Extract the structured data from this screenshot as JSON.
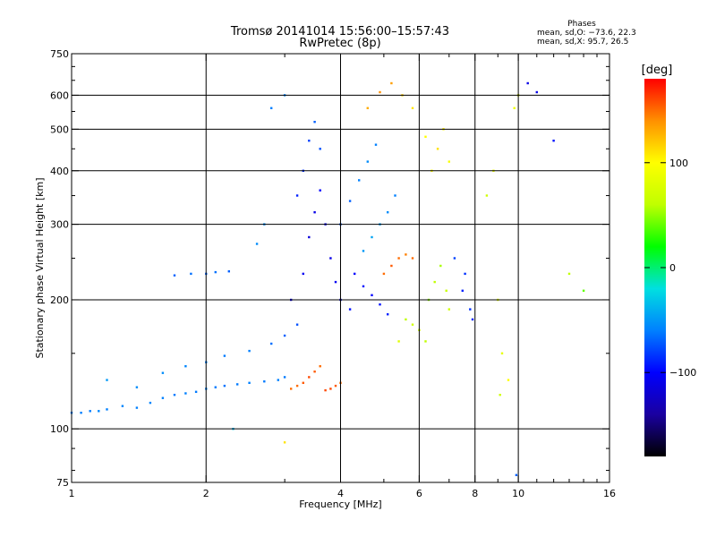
{
  "header": {
    "title_line1": "Tromsø 20141014 15:56:00–15:57:43",
    "title_line2": "RwPretec (8p)",
    "phases_title": "Phases",
    "phases_o": "mean, sd,O: −73.6, 22.3",
    "phases_x": "mean, sd,X:  95.7, 26.5"
  },
  "colors": {
    "gridline": "#000000",
    "colorbar_stops": [
      "#000000",
      "#1a00a0",
      "#0000ff",
      "#0080ff",
      "#00e0e0",
      "#00ff00",
      "#c0ff00",
      "#ffff00",
      "#ff9000",
      "#ff0000"
    ]
  },
  "chart_data": {
    "type": "scatter",
    "title": "Tromsø 20141014 15:56:00–15:57:43",
    "subtitle": "RwPretec (8p)",
    "xlabel": "Frequency [MHz]",
    "ylabel": "Stationary phase Virtual Height [km]",
    "x_scale": "log",
    "y_scale": "log",
    "xlim": [
      1,
      16
    ],
    "ylim": [
      75,
      750
    ],
    "x_ticks": [
      1,
      2,
      4,
      6,
      8,
      10,
      16
    ],
    "x_tick_labels": [
      "1",
      "2",
      "4",
      "6",
      "8",
      "10",
      "16"
    ],
    "x_minor_ticks": [
      3,
      5,
      7,
      9,
      11,
      12,
      13,
      14,
      15
    ],
    "x_gridlines": [
      2,
      4,
      6,
      8,
      10
    ],
    "y_ticks": [
      75,
      100,
      200,
      300,
      400,
      500,
      600,
      750
    ],
    "y_tick_labels": [
      "75",
      "100",
      "200",
      "300",
      "400",
      "500",
      "600",
      "750"
    ],
    "y_minor_ticks": [
      80,
      90,
      150,
      250,
      350,
      450,
      550,
      650,
      700
    ],
    "y_gridlines": [
      100,
      200,
      300,
      400,
      500,
      600
    ],
    "grid": true,
    "colorbar": {
      "unit": "[deg]",
      "range": [
        -180,
        180
      ],
      "tick_values": [
        100,
        0,
        -100
      ],
      "tick_labels": [
        "100",
        "0",
        "−100"
      ],
      "placement": "right"
    },
    "series": [
      {
        "points": [
          [
            1.0,
            109,
            -60
          ],
          [
            1.05,
            109,
            -60
          ],
          [
            1.1,
            110,
            -62
          ],
          [
            1.15,
            110,
            -58
          ],
          [
            1.2,
            111,
            -60
          ],
          [
            1.3,
            113,
            -58
          ],
          [
            1.4,
            112,
            -60
          ],
          [
            1.5,
            115,
            -58
          ],
          [
            1.6,
            118,
            -60
          ],
          [
            1.7,
            120,
            -62
          ],
          [
            1.8,
            121,
            -60
          ],
          [
            1.9,
            122,
            -62
          ],
          [
            2.0,
            124,
            -60
          ],
          [
            2.1,
            125,
            -62
          ],
          [
            2.2,
            126,
            -64
          ],
          [
            2.35,
            127,
            -62
          ],
          [
            2.5,
            128,
            -60
          ],
          [
            2.7,
            129,
            -62
          ],
          [
            2.9,
            130,
            -60
          ],
          [
            3.0,
            132,
            -62
          ],
          [
            1.6,
            135,
            -55
          ],
          [
            1.8,
            140,
            -58
          ],
          [
            2.0,
            143,
            -60
          ],
          [
            2.2,
            148,
            -62
          ],
          [
            2.5,
            152,
            -60
          ],
          [
            2.8,
            158,
            -65
          ],
          [
            3.0,
            165,
            -70
          ],
          [
            3.2,
            175,
            -75
          ],
          [
            1.2,
            130,
            -50
          ],
          [
            1.4,
            125,
            -55
          ],
          [
            1.7,
            228,
            -70
          ],
          [
            1.85,
            230,
            -65
          ],
          [
            2.0,
            230,
            -70
          ],
          [
            2.1,
            232,
            -65
          ],
          [
            2.25,
            233,
            -70
          ],
          [
            2.6,
            270,
            -55
          ],
          [
            2.7,
            300,
            -55
          ],
          [
            2.3,
            100,
            -40
          ],
          [
            2.8,
            560,
            -60
          ],
          [
            3.0,
            600,
            -60
          ],
          [
            3.1,
            124,
            150
          ],
          [
            3.2,
            126,
            150
          ],
          [
            3.3,
            128,
            155
          ],
          [
            3.4,
            132,
            160
          ],
          [
            3.5,
            136,
            155
          ],
          [
            3.6,
            140,
            150
          ],
          [
            3.7,
            123,
            160
          ],
          [
            3.8,
            124,
            160
          ],
          [
            3.9,
            126,
            155
          ],
          [
            4.0,
            128,
            150
          ],
          [
            3.1,
            200,
            -110
          ],
          [
            3.3,
            230,
            -105
          ],
          [
            3.4,
            280,
            -115
          ],
          [
            3.5,
            320,
            -110
          ],
          [
            3.6,
            360,
            -100
          ],
          [
            3.7,
            300,
            -105
          ],
          [
            3.8,
            250,
            -110
          ],
          [
            3.9,
            220,
            -105
          ],
          [
            4.0,
            200,
            -100
          ],
          [
            4.2,
            190,
            -95
          ],
          [
            3.4,
            470,
            -80
          ],
          [
            3.5,
            520,
            -70
          ],
          [
            3.6,
            450,
            -75
          ],
          [
            3.3,
            400,
            -85
          ],
          [
            3.2,
            350,
            -90
          ],
          [
            4.0,
            300,
            -75
          ],
          [
            4.2,
            340,
            -70
          ],
          [
            4.4,
            380,
            -60
          ],
          [
            4.6,
            420,
            -55
          ],
          [
            4.8,
            460,
            -60
          ],
          [
            4.5,
            260,
            -50
          ],
          [
            4.7,
            280,
            -45
          ],
          [
            4.9,
            300,
            -50
          ],
          [
            5.1,
            320,
            -55
          ],
          [
            5.3,
            350,
            -60
          ],
          [
            4.3,
            230,
            -100
          ],
          [
            4.5,
            215,
            -95
          ],
          [
            4.7,
            205,
            -100
          ],
          [
            4.9,
            195,
            -95
          ],
          [
            5.1,
            185,
            -90
          ],
          [
            5.0,
            230,
            150
          ],
          [
            5.2,
            240,
            155
          ],
          [
            5.4,
            250,
            150
          ],
          [
            5.6,
            255,
            145
          ],
          [
            5.8,
            250,
            150
          ],
          [
            4.6,
            560,
            130
          ],
          [
            4.9,
            610,
            140
          ],
          [
            5.2,
            640,
            135
          ],
          [
            5.5,
            600,
            120
          ],
          [
            5.8,
            560,
            110
          ],
          [
            5.6,
            180,
            60
          ],
          [
            5.8,
            175,
            70
          ],
          [
            6.0,
            170,
            65
          ],
          [
            6.2,
            160,
            60
          ],
          [
            5.4,
            160,
            80
          ],
          [
            6.3,
            200,
            50
          ],
          [
            6.5,
            220,
            60
          ],
          [
            6.7,
            240,
            55
          ],
          [
            6.9,
            210,
            65
          ],
          [
            7.0,
            190,
            70
          ],
          [
            6.4,
            400,
            100
          ],
          [
            6.6,
            450,
            110
          ],
          [
            6.8,
            500,
            105
          ],
          [
            7.0,
            420,
            95
          ],
          [
            6.2,
            480,
            100
          ],
          [
            7.2,
            250,
            -80
          ],
          [
            7.5,
            210,
            -90
          ],
          [
            7.8,
            190,
            -85
          ],
          [
            7.9,
            180,
            -90
          ],
          [
            7.6,
            230,
            -85
          ],
          [
            8.5,
            350,
            70
          ],
          [
            8.8,
            400,
            90
          ],
          [
            9.0,
            200,
            80
          ],
          [
            9.2,
            150,
            85
          ],
          [
            9.1,
            120,
            70
          ],
          [
            9.5,
            130,
            100
          ],
          [
            9.8,
            560,
            90
          ],
          [
            10.0,
            600,
            80
          ],
          [
            10.5,
            640,
            -110
          ],
          [
            11.0,
            610,
            -110
          ],
          [
            12.0,
            470,
            -95
          ],
          [
            13.0,
            230,
            60
          ],
          [
            14.0,
            210,
            40
          ],
          [
            9.9,
            78,
            -70
          ],
          [
            3.0,
            93,
            110
          ]
        ]
      }
    ]
  }
}
